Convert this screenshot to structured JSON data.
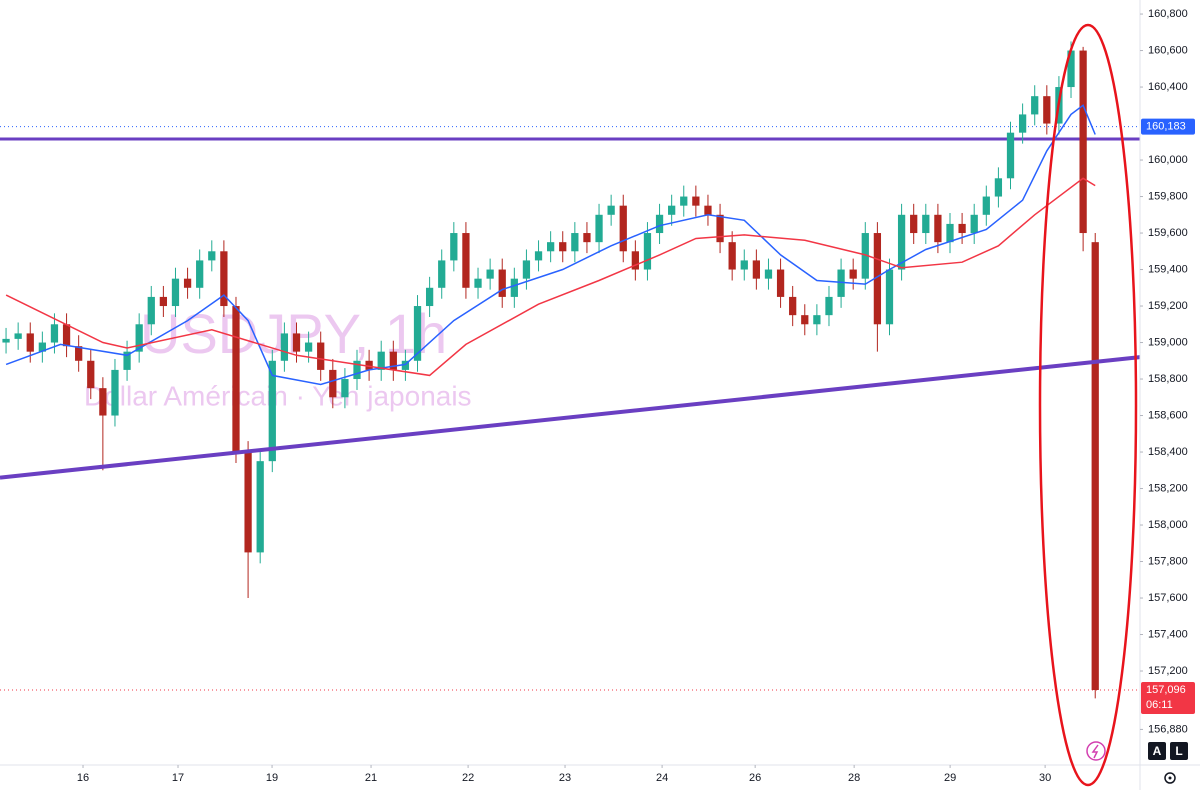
{
  "chart_data": {
    "type": "candlestick",
    "watermark_title": "USDJPY, 1h",
    "watermark_subtitle": "Dollar Américain · Yen japonais",
    "up_color": "#22ab94",
    "down_color": "#b2261f",
    "open": [
      159.0,
      159.02,
      159.05,
      158.95,
      159.0,
      159.1,
      158.98,
      158.9,
      158.75,
      158.6,
      158.85,
      158.95,
      159.1,
      159.25,
      159.2,
      159.35,
      159.3,
      159.45,
      159.5,
      159.2,
      158.4,
      157.85,
      158.35,
      158.9,
      159.05,
      158.95,
      159.0,
      158.85,
      158.7,
      158.8,
      158.9,
      158.85,
      158.95,
      158.85,
      158.9,
      159.2,
      159.3,
      159.45,
      159.6,
      159.3,
      159.35,
      159.4,
      159.25,
      159.35,
      159.45,
      159.5,
      159.55,
      159.5,
      159.6,
      159.55,
      159.7,
      159.75,
      159.5,
      159.4,
      159.6,
      159.7,
      159.75,
      159.8,
      159.75,
      159.7,
      159.55,
      159.4,
      159.45,
      159.35,
      159.4,
      159.25,
      159.15,
      159.1,
      159.15,
      159.25,
      159.4,
      159.35,
      159.6,
      159.1,
      159.4,
      159.7,
      159.6,
      159.7,
      159.55,
      159.65,
      159.6,
      159.7,
      159.8,
      159.9,
      160.15,
      160.25,
      160.35,
      160.2,
      160.4,
      160.6,
      159.55
    ],
    "high": [
      159.08,
      159.11,
      159.11,
      159.06,
      159.16,
      159.16,
      159.04,
      158.96,
      158.81,
      158.91,
      159.01,
      159.16,
      159.31,
      159.31,
      159.41,
      159.41,
      159.51,
      159.56,
      159.56,
      159.25,
      158.46,
      158.41,
      158.96,
      159.11,
      159.11,
      159.06,
      159.06,
      158.91,
      158.86,
      158.96,
      158.96,
      159.01,
      159.01,
      158.96,
      159.26,
      159.36,
      159.51,
      159.66,
      159.66,
      159.41,
      159.46,
      159.46,
      159.41,
      159.51,
      159.56,
      159.61,
      159.61,
      159.66,
      159.66,
      159.76,
      159.81,
      159.81,
      159.56,
      159.66,
      159.76,
      159.81,
      159.86,
      159.86,
      159.81,
      159.76,
      159.61,
      159.51,
      159.51,
      159.46,
      159.46,
      159.31,
      159.21,
      159.21,
      159.31,
      159.46,
      159.46,
      159.66,
      159.66,
      159.46,
      159.76,
      159.76,
      159.76,
      159.76,
      159.71,
      159.71,
      159.76,
      159.86,
      159.96,
      160.21,
      160.31,
      160.41,
      160.41,
      160.46,
      160.65,
      160.62,
      159.6
    ],
    "low": [
      158.94,
      158.96,
      158.89,
      158.89,
      158.94,
      158.92,
      158.84,
      158.69,
      158.3,
      158.54,
      158.79,
      158.89,
      159.04,
      159.14,
      159.14,
      159.24,
      159.24,
      159.39,
      159.14,
      158.34,
      157.6,
      157.79,
      158.29,
      158.84,
      158.89,
      158.89,
      158.79,
      158.64,
      158.64,
      158.74,
      158.79,
      158.79,
      158.79,
      158.79,
      158.84,
      159.14,
      159.24,
      159.39,
      159.24,
      159.24,
      159.29,
      159.19,
      159.19,
      159.29,
      159.39,
      159.44,
      159.44,
      159.44,
      159.49,
      159.49,
      159.64,
      159.44,
      159.34,
      159.34,
      159.54,
      159.64,
      159.69,
      159.69,
      159.64,
      159.49,
      159.34,
      159.34,
      159.29,
      159.29,
      159.19,
      159.09,
      159.04,
      159.04,
      159.09,
      159.19,
      159.29,
      159.29,
      158.95,
      159.04,
      159.34,
      159.54,
      159.54,
      159.49,
      159.49,
      159.54,
      159.54,
      159.64,
      159.74,
      159.84,
      160.09,
      160.19,
      160.14,
      160.14,
      160.34,
      159.5,
      157.05
    ],
    "close": [
      159.02,
      159.05,
      158.95,
      159.0,
      159.1,
      158.98,
      158.9,
      158.75,
      158.6,
      158.85,
      158.95,
      159.1,
      159.25,
      159.2,
      159.35,
      159.3,
      159.45,
      159.5,
      159.2,
      158.4,
      157.85,
      158.35,
      158.9,
      159.05,
      158.95,
      159.0,
      158.85,
      158.7,
      158.8,
      158.9,
      158.85,
      158.95,
      158.85,
      158.9,
      159.2,
      159.3,
      159.45,
      159.6,
      159.3,
      159.35,
      159.4,
      159.25,
      159.35,
      159.45,
      159.5,
      159.55,
      159.5,
      159.6,
      159.55,
      159.7,
      159.75,
      159.5,
      159.4,
      159.6,
      159.7,
      159.75,
      159.8,
      159.75,
      159.7,
      159.55,
      159.4,
      159.45,
      159.35,
      159.4,
      159.25,
      159.15,
      159.1,
      159.15,
      159.25,
      159.4,
      159.35,
      159.6,
      159.1,
      159.4,
      159.7,
      159.6,
      159.7,
      159.55,
      159.65,
      159.6,
      159.7,
      159.8,
      159.9,
      160.15,
      160.25,
      160.35,
      160.2,
      160.4,
      160.6,
      159.6,
      157.096
    ],
    "moving_averages": [
      {
        "color": "#2962ff",
        "x": [
          0,
          4.5,
          10,
          15,
          18,
          20,
          22,
          26,
          30,
          33,
          37,
          41,
          46,
          50,
          54,
          58,
          61,
          64,
          67,
          71,
          73,
          76,
          81,
          84,
          86,
          88,
          89,
          90
        ],
        "values": [
          158.88,
          158.99,
          158.93,
          159.12,
          159.26,
          159.12,
          158.82,
          158.77,
          158.85,
          158.88,
          159.12,
          159.29,
          159.4,
          159.53,
          159.64,
          159.7,
          159.67,
          159.48,
          159.34,
          159.32,
          159.4,
          159.51,
          159.62,
          159.78,
          160.05,
          160.25,
          160.3,
          160.14
        ]
      },
      {
        "color": "#f23645",
        "x": [
          0,
          8,
          10,
          17,
          24,
          35,
          38,
          44,
          49,
          54,
          57,
          61,
          66,
          71,
          74,
          79,
          82,
          85,
          89,
          90
        ],
        "values": [
          159.26,
          159.0,
          158.97,
          159.07,
          158.93,
          158.82,
          158.99,
          159.21,
          159.34,
          159.48,
          159.57,
          159.59,
          159.56,
          159.48,
          159.41,
          159.44,
          159.53,
          159.7,
          159.9,
          159.86
        ]
      }
    ],
    "hlines": [
      {
        "value": 160.115,
        "color": "#6a3fc2"
      }
    ],
    "trendlines": [
      {
        "x": [
          -0.5,
          93.7
        ],
        "values": [
          158.26,
          158.92
        ],
        "color": "#6a3fc2"
      }
    ],
    "price_labels": [
      {
        "value": 160.183,
        "label": "160,183",
        "color": "#2962ff"
      },
      {
        "value": 157.096,
        "label": "157,096",
        "sublabel": "06:11",
        "color": "#f23645"
      }
    ],
    "xlim": [
      -0.5,
      93.7
    ],
    "xticks": [
      {
        "value": 6.36,
        "label": "16"
      },
      {
        "value": 14.21,
        "label": "17"
      },
      {
        "value": 21.98,
        "label": "19"
      },
      {
        "value": 30.16,
        "label": "21"
      },
      {
        "value": 38.18,
        "label": "22"
      },
      {
        "value": 46.19,
        "label": "23"
      },
      {
        "value": 54.21,
        "label": "24"
      },
      {
        "value": 61.9,
        "label": "26"
      },
      {
        "value": 70.08,
        "label": "28"
      },
      {
        "value": 78.01,
        "label": "29"
      },
      {
        "value": 85.86,
        "label": "30"
      }
    ],
    "ylim": [
      156.685,
      160.877
    ],
    "yticks": [
      {
        "value": 160.8,
        "label": "160,800"
      },
      {
        "value": 160.6,
        "label": "160,600"
      },
      {
        "value": 160.4,
        "label": "160,400"
      },
      {
        "value": 160.0,
        "label": "160,000"
      },
      {
        "value": 159.8,
        "label": "159,800"
      },
      {
        "value": 159.6,
        "label": "159,600"
      },
      {
        "value": 159.4,
        "label": "159,400"
      },
      {
        "value": 159.2,
        "label": "159,200"
      },
      {
        "value": 159.0,
        "label": "159,000"
      },
      {
        "value": 158.8,
        "label": "158,800"
      },
      {
        "value": 158.6,
        "label": "158,600"
      },
      {
        "value": 158.4,
        "label": "158,400"
      },
      {
        "value": 158.2,
        "label": "158,200"
      },
      {
        "value": 158.0,
        "label": "158,000"
      },
      {
        "value": 157.8,
        "label": "157,800"
      },
      {
        "value": 157.6,
        "label": "157,600"
      },
      {
        "value": 157.4,
        "label": "157,400"
      },
      {
        "value": 157.2,
        "label": "157,200"
      },
      {
        "value": 156.88,
        "label": "156,880"
      }
    ],
    "buttons": [
      "A",
      "L"
    ]
  }
}
